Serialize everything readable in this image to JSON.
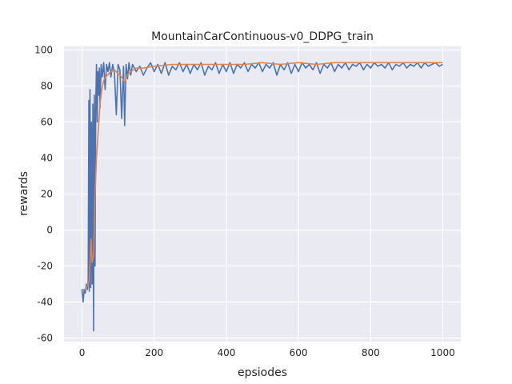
{
  "chart_data": {
    "type": "line",
    "title": "MountainCarContinuous-v0_DDPG_train",
    "xlabel": "epsiodes",
    "ylabel": "rewards",
    "xlim": [
      -50,
      1050
    ],
    "ylim": [
      -62,
      102
    ],
    "xticks": [
      0,
      200,
      400,
      600,
      800,
      1000
    ],
    "yticks": [
      -60,
      -40,
      -20,
      0,
      20,
      40,
      60,
      80,
      100
    ],
    "grid": true,
    "legend": "none",
    "series": [
      {
        "color": "#4c72b0",
        "points": [
          [
            0,
            -33
          ],
          [
            3,
            -40
          ],
          [
            6,
            -33
          ],
          [
            9,
            -35
          ],
          [
            12,
            -30
          ],
          [
            15,
            -33
          ],
          [
            17,
            -28
          ],
          [
            19,
            72
          ],
          [
            20,
            -34
          ],
          [
            22,
            78
          ],
          [
            24,
            -32
          ],
          [
            26,
            60
          ],
          [
            28,
            -30
          ],
          [
            30,
            70
          ],
          [
            32,
            -56
          ],
          [
            34,
            75
          ],
          [
            36,
            -20
          ],
          [
            38,
            70
          ],
          [
            40,
            92
          ],
          [
            42,
            60
          ],
          [
            44,
            88
          ],
          [
            46,
            75
          ],
          [
            48,
            90
          ],
          [
            50,
            68
          ],
          [
            53,
            92
          ],
          [
            56,
            85
          ],
          [
            60,
            93
          ],
          [
            64,
            78
          ],
          [
            68,
            92
          ],
          [
            72,
            88
          ],
          [
            76,
            93
          ],
          [
            80,
            85
          ],
          [
            85,
            92
          ],
          [
            90,
            87
          ],
          [
            95,
            64
          ],
          [
            100,
            92
          ],
          [
            105,
            89
          ],
          [
            110,
            62
          ],
          [
            115,
            91
          ],
          [
            118,
            58
          ],
          [
            122,
            92
          ],
          [
            126,
            84
          ],
          [
            130,
            93
          ],
          [
            135,
            86
          ],
          [
            140,
            92
          ],
          [
            150,
            88
          ],
          [
            160,
            91
          ],
          [
            170,
            86
          ],
          [
            180,
            90
          ],
          [
            190,
            93
          ],
          [
            200,
            88
          ],
          [
            210,
            92
          ],
          [
            220,
            87
          ],
          [
            230,
            93
          ],
          [
            240,
            86
          ],
          [
            250,
            91
          ],
          [
            260,
            89
          ],
          [
            270,
            93
          ],
          [
            280,
            88
          ],
          [
            290,
            92
          ],
          [
            300,
            87
          ],
          [
            310,
            92
          ],
          [
            320,
            89
          ],
          [
            330,
            93
          ],
          [
            340,
            86
          ],
          [
            350,
            91
          ],
          [
            360,
            89
          ],
          [
            370,
            93
          ],
          [
            380,
            87
          ],
          [
            390,
            92
          ],
          [
            400,
            88
          ],
          [
            410,
            93
          ],
          [
            420,
            87
          ],
          [
            430,
            92
          ],
          [
            440,
            90
          ],
          [
            450,
            93
          ],
          [
            460,
            88
          ],
          [
            470,
            92
          ],
          [
            480,
            90
          ],
          [
            490,
            93
          ],
          [
            500,
            88
          ],
          [
            510,
            92
          ],
          [
            520,
            90
          ],
          [
            530,
            93
          ],
          [
            540,
            86
          ],
          [
            550,
            92
          ],
          [
            560,
            89
          ],
          [
            570,
            93
          ],
          [
            580,
            87
          ],
          [
            590,
            92
          ],
          [
            600,
            88
          ],
          [
            610,
            93
          ],
          [
            620,
            90
          ],
          [
            630,
            92
          ],
          [
            640,
            89
          ],
          [
            650,
            93
          ],
          [
            660,
            87
          ],
          [
            670,
            92
          ],
          [
            680,
            90
          ],
          [
            690,
            93
          ],
          [
            700,
            88
          ],
          [
            710,
            92
          ],
          [
            720,
            90
          ],
          [
            730,
            93
          ],
          [
            740,
            89
          ],
          [
            750,
            92
          ],
          [
            760,
            91
          ],
          [
            770,
            93
          ],
          [
            780,
            89
          ],
          [
            790,
            92
          ],
          [
            800,
            90
          ],
          [
            810,
            93
          ],
          [
            820,
            91
          ],
          [
            830,
            92
          ],
          [
            840,
            90
          ],
          [
            850,
            93
          ],
          [
            860,
            89
          ],
          [
            870,
            92
          ],
          [
            880,
            91
          ],
          [
            890,
            93
          ],
          [
            900,
            90
          ],
          [
            910,
            92
          ],
          [
            920,
            91
          ],
          [
            930,
            93
          ],
          [
            940,
            90
          ],
          [
            950,
            93
          ],
          [
            960,
            91
          ],
          [
            970,
            92
          ],
          [
            980,
            93
          ],
          [
            990,
            91
          ],
          [
            1000,
            92
          ]
        ]
      },
      {
        "color": "#dd8452",
        "points": [
          [
            0,
            -33
          ],
          [
            10,
            -33
          ],
          [
            20,
            -28
          ],
          [
            25,
            -5
          ],
          [
            28,
            -18
          ],
          [
            32,
            -14
          ],
          [
            36,
            20
          ],
          [
            40,
            40
          ],
          [
            45,
            55
          ],
          [
            50,
            70
          ],
          [
            55,
            78
          ],
          [
            60,
            83
          ],
          [
            65,
            85
          ],
          [
            70,
            86
          ],
          [
            80,
            88
          ],
          [
            90,
            89
          ],
          [
            100,
            87
          ],
          [
            110,
            85
          ],
          [
            118,
            82
          ],
          [
            125,
            86
          ],
          [
            135,
            88
          ],
          [
            150,
            90
          ],
          [
            170,
            90
          ],
          [
            200,
            91
          ],
          [
            250,
            92
          ],
          [
            300,
            92
          ],
          [
            350,
            92
          ],
          [
            400,
            92
          ],
          [
            450,
            92
          ],
          [
            500,
            93
          ],
          [
            550,
            92
          ],
          [
            600,
            93
          ],
          [
            650,
            92
          ],
          [
            700,
            93
          ],
          [
            750,
            93
          ],
          [
            800,
            93
          ],
          [
            850,
            93
          ],
          [
            900,
            93
          ],
          [
            950,
            93
          ],
          [
            1000,
            93
          ]
        ]
      }
    ]
  }
}
